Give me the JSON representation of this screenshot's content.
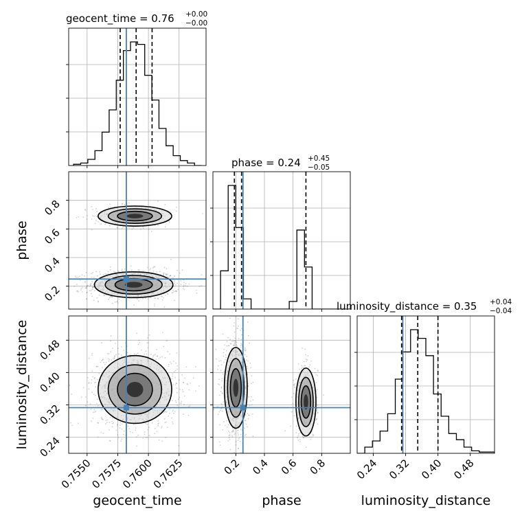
{
  "chart_data": {
    "type": "corner",
    "parameters": [
      {
        "name": "geocent_time",
        "axis_label": "geocent_time",
        "title": "geocent_time = 0.76",
        "title_plus": "+0.00",
        "title_minus": "−0.00",
        "range": [
          0.7535,
          0.7647
        ],
        "ticks": [
          0.755,
          0.7575,
          0.76,
          0.7625
        ],
        "tick_labels": [
          "0.7550",
          "0.7575",
          "0.7600",
          "0.7625"
        ],
        "truth": 0.7582,
        "quantiles": [
          0.7577,
          0.759,
          0.7603
        ],
        "hist": {
          "edges": [
            0.7539,
            0.75448,
            0.75506,
            0.75564,
            0.75622,
            0.7568,
            0.75738,
            0.75796,
            0.75854,
            0.75912,
            0.7597,
            0.76028,
            0.76086,
            0.76144,
            0.76202,
            0.7626,
            0.76318,
            0.76376,
            0.76434
          ],
          "counts": [
            0.01,
            0.02,
            0.05,
            0.12,
            0.27,
            0.45,
            0.69,
            0.93,
            1.0,
            0.98,
            0.73,
            0.53,
            0.3,
            0.16,
            0.08,
            0.04,
            0.02,
            0.0
          ]
        }
      },
      {
        "name": "phase",
        "axis_label": "phase",
        "title": "phase = 0.24",
        "title_plus": "+0.45",
        "title_minus": "−0.05",
        "range": [
          0.04,
          1.0
        ],
        "ticks": [
          0.2,
          0.4,
          0.6,
          0.8
        ],
        "tick_labels": [
          "0.2",
          "0.4",
          "0.6",
          "0.8"
        ],
        "truth": 0.25,
        "quantiles": [
          0.19,
          0.24,
          0.69
        ],
        "hist": {
          "edges": [
            0.04,
            0.0933,
            0.1467,
            0.2,
            0.2533,
            0.3067,
            0.36,
            0.4133,
            0.4667,
            0.52,
            0.5733,
            0.6267,
            0.68,
            0.7333,
            0.7867,
            0.84,
            0.8933,
            0.9467,
            1.0
          ],
          "counts": [
            0.0,
            0.3,
            0.97,
            0.64,
            0.08,
            0.0,
            0.0,
            0.0,
            0.0,
            0.0,
            0.06,
            0.62,
            0.33,
            0.0,
            0.0,
            0.0,
            0.0,
            0.0
          ]
        }
      },
      {
        "name": "luminosity_distance",
        "axis_label": "luminosity_distance",
        "title": "luminosity_distance = 0.35",
        "title_plus": "+0.04",
        "title_minus": "−0.04",
        "range": [
          0.2,
          0.54
        ],
        "ticks": [
          0.24,
          0.32,
          0.4,
          0.48
        ],
        "tick_labels": [
          "0.24",
          "0.32",
          "0.40",
          "0.48"
        ],
        "truth": 0.313,
        "quantiles": [
          0.31,
          0.35,
          0.4
        ],
        "hist": {
          "edges": [
            0.2,
            0.2189,
            0.2378,
            0.2567,
            0.2756,
            0.2944,
            0.3133,
            0.3322,
            0.3511,
            0.37,
            0.3889,
            0.4078,
            0.4267,
            0.4456,
            0.4644,
            0.4833,
            0.5022,
            0.5211,
            0.54
          ],
          "counts": [
            0.0,
            0.05,
            0.1,
            0.18,
            0.32,
            0.6,
            0.82,
            1.0,
            0.93,
            0.79,
            0.48,
            0.3,
            0.16,
            0.11,
            0.05,
            0.02,
            0.01,
            0.01
          ]
        }
      }
    ],
    "pairs": [
      {
        "x": "geocent_time",
        "y": "phase",
        "clusters": [
          {
            "cx": 0.7588,
            "cy": 0.21,
            "sx": 0.0016,
            "sy": 0.045,
            "weight": 0.75
          },
          {
            "cx": 0.7589,
            "cy": 0.69,
            "sx": 0.0015,
            "sy": 0.035,
            "weight": 0.25
          }
        ]
      },
      {
        "x": "geocent_time",
        "y": "luminosity_distance",
        "clusters": [
          {
            "cx": 0.7589,
            "cy": 0.358,
            "sx": 0.0015,
            "sy": 0.042,
            "weight": 1.0
          }
        ]
      },
      {
        "x": "phase",
        "y": "luminosity_distance",
        "clusters": [
          {
            "cx": 0.2,
            "cy": 0.362,
            "sx": 0.04,
            "sy": 0.05,
            "weight": 0.72
          },
          {
            "cx": 0.69,
            "cy": 0.327,
            "sx": 0.035,
            "sy": 0.042,
            "weight": 0.28
          }
        ]
      }
    ],
    "grid": true,
    "truth_color": "#4682b4",
    "contour_color": "#000000"
  }
}
